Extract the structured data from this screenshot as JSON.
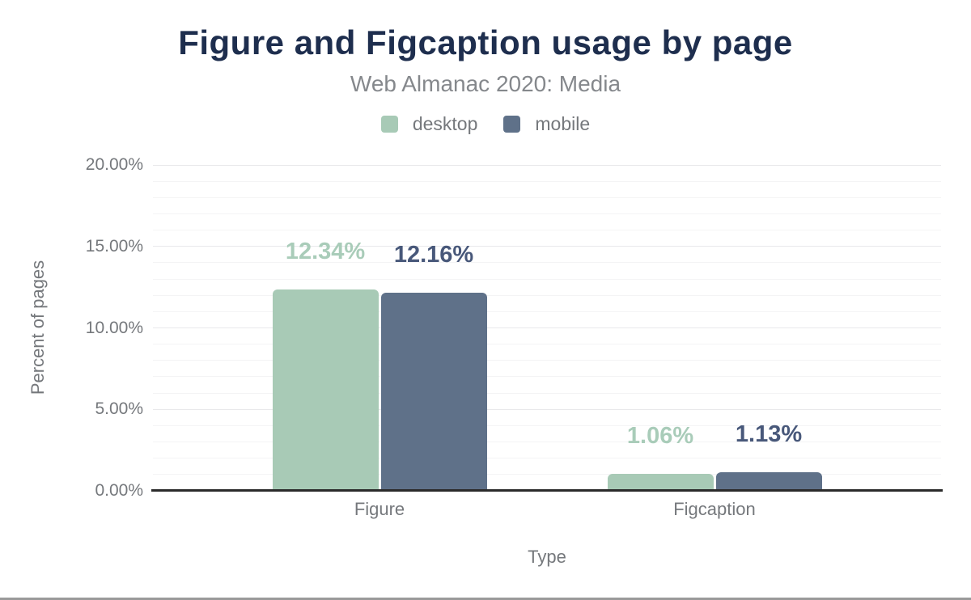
{
  "chart_data": {
    "type": "bar",
    "title": "Figure and Figcaption usage by page",
    "subtitle": "Web Almanac 2020: Media",
    "xlabel": "Type",
    "ylabel": "Percent of pages",
    "categories": [
      "Figure",
      "Figcaption"
    ],
    "series": [
      {
        "name": "desktop",
        "values": [
          12.34,
          1.06
        ],
        "data_labels": [
          "12.34%",
          "1.06%"
        ],
        "color": "#a8cab6",
        "label_color": "#a9ccb9"
      },
      {
        "name": "mobile",
        "values": [
          12.16,
          1.13
        ],
        "data_labels": [
          "12.16%",
          "1.13%"
        ],
        "color": "#5f7189",
        "label_color": "#48587a"
      }
    ],
    "ylim": [
      0,
      20
    ],
    "y_major_step": 5,
    "y_minor_step": 1,
    "y_tick_labels": [
      "0.00%",
      "5.00%",
      "10.00%",
      "15.00%",
      "20.00%"
    ],
    "legend_position": "top",
    "grid": true
  },
  "colors": {
    "background": "#ffffff",
    "title": "#1e2e4e",
    "subtitle": "#85888c",
    "axis_text": "#75787c",
    "gridline_minor": "#f4f4f5",
    "gridline_major": "#e9e9eb",
    "axis_line": "#2b2b2b",
    "page_bottom_border": "#9a9a9a"
  }
}
